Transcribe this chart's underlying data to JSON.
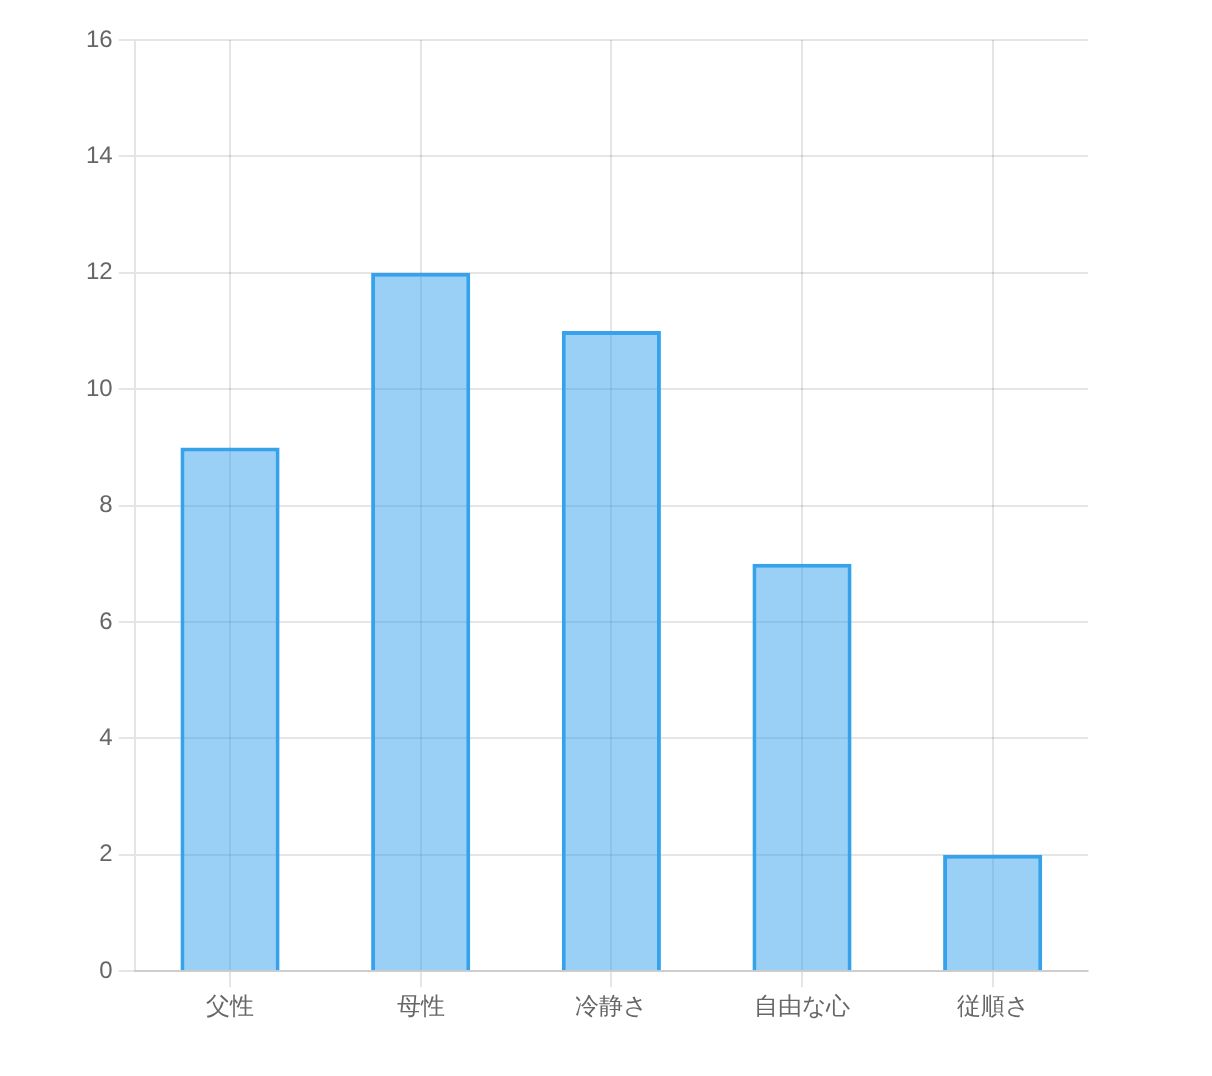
{
  "chart_data": {
    "type": "bar",
    "categories": [
      "父性",
      "母性",
      "冷静さ",
      "自由な心",
      "従順さ"
    ],
    "values": [
      9,
      12,
      11,
      7,
      2
    ],
    "color": "#36a2eb",
    "ylim": [
      0,
      16
    ],
    "yticks": [
      0,
      2,
      4,
      6,
      8,
      10,
      12,
      14,
      16
    ],
    "grid": true
  }
}
